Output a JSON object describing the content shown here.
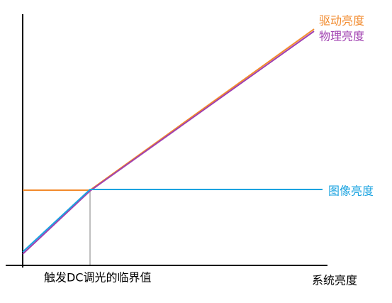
{
  "legend": {
    "drive_brightness": "驱动亮度",
    "physical_brightness": "物理亮度",
    "image_brightness": "图像亮度"
  },
  "threshold_label": "触发DC调光的临界值",
  "x_axis_label": "系统亮度"
}
